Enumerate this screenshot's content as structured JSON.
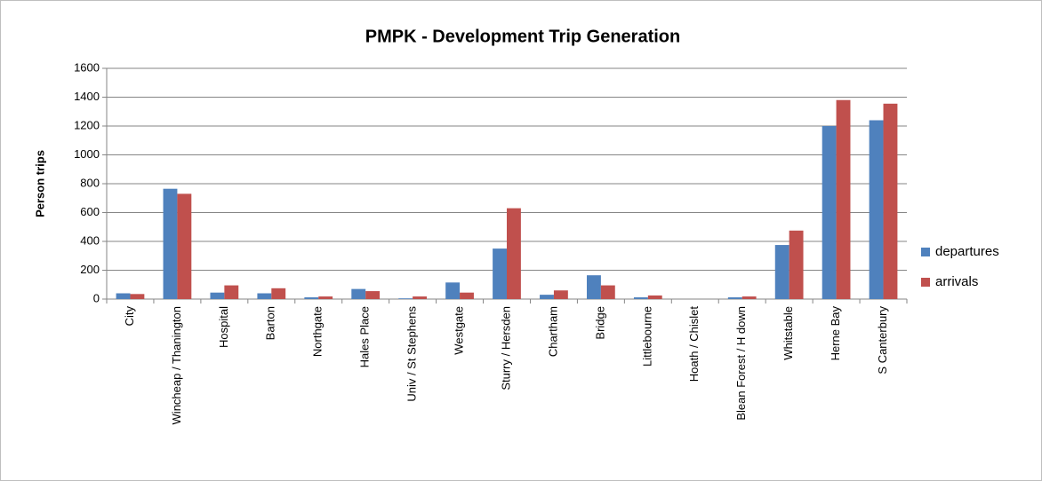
{
  "chart_data": {
    "type": "bar",
    "title": "PMPK - Development Trip Generation",
    "y_label": "Person trips",
    "categories": [
      "City",
      "Wincheap / Thanington",
      "Hospital",
      "Barton",
      "Northgate",
      "Hales Place",
      "Univ / St Stephens",
      "Westgate",
      "Sturry / Hersden",
      "Chartham",
      "Bridge",
      "Littlebourne",
      "Hoath / Chislet",
      "Blean Forest / H down",
      "Whitstable",
      "Herne Bay",
      "S Canterbury"
    ],
    "series": [
      {
        "name": "departures",
        "color": "#4f81bd",
        "values": [
          40,
          765,
          45,
          40,
          12,
          70,
          5,
          115,
          350,
          30,
          165,
          12,
          0,
          12,
          375,
          1200,
          1240
        ]
      },
      {
        "name": "arrivals",
        "color": "#c0504d",
        "values": [
          35,
          730,
          95,
          75,
          18,
          55,
          18,
          45,
          630,
          60,
          95,
          25,
          0,
          18,
          475,
          1380,
          1355
        ]
      }
    ],
    "ylim": [
      0,
      1600
    ],
    "yticks": [
      0,
      200,
      400,
      600,
      800,
      1000,
      1200,
      1400,
      1600
    ],
    "grid": true,
    "legend": "right"
  }
}
